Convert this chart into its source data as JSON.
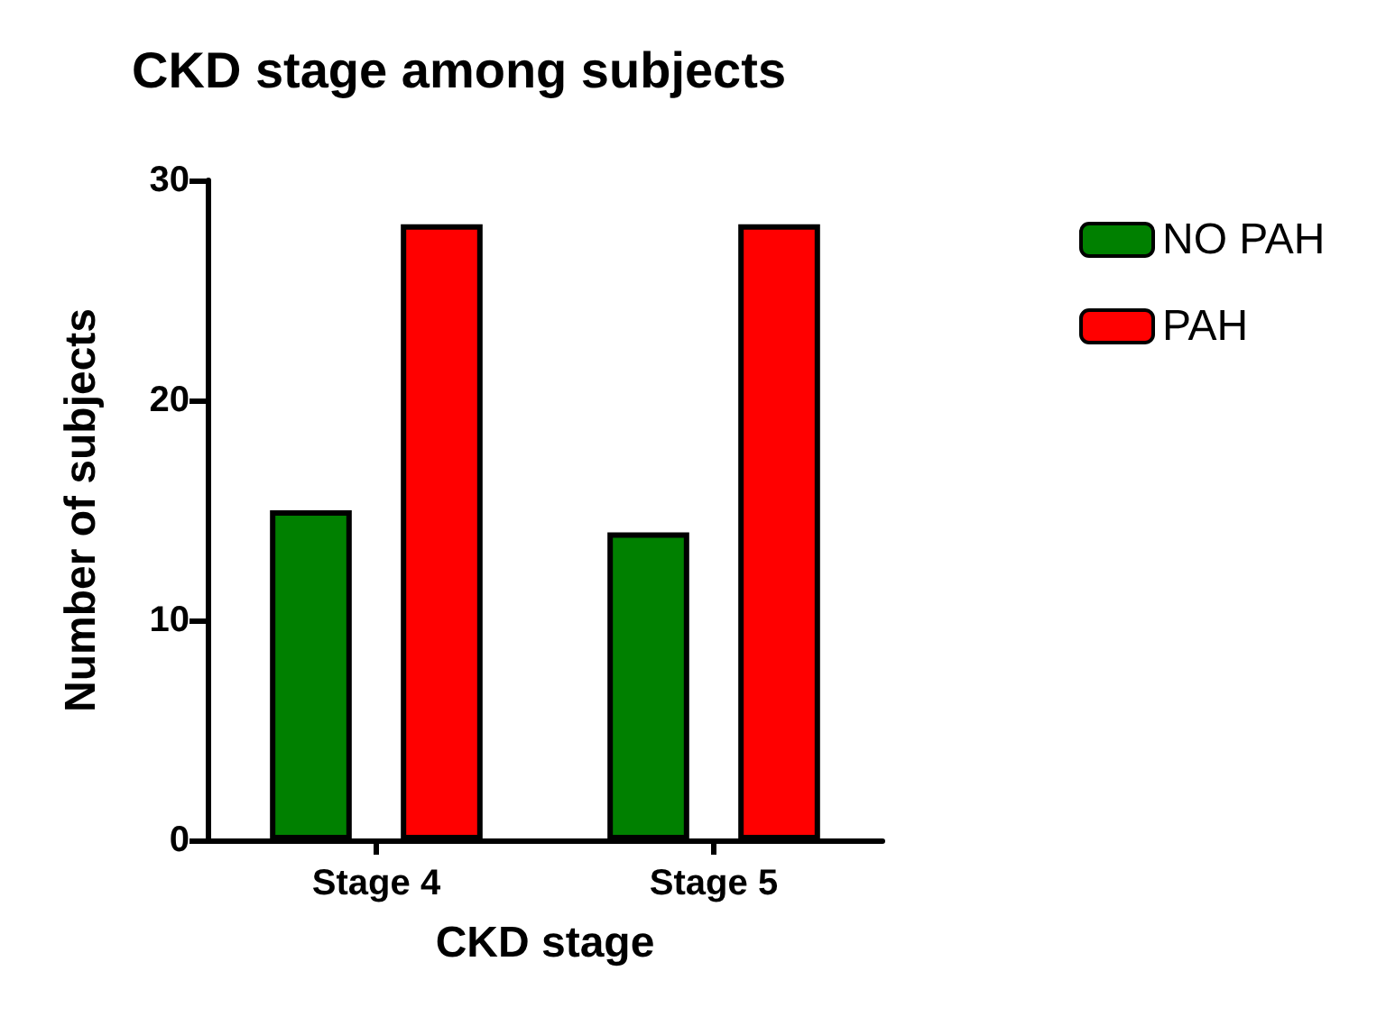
{
  "chart_data": {
    "type": "bar",
    "title": "CKD stage among subjects",
    "xlabel": "CKD stage",
    "ylabel": "Number of subjects",
    "categories": [
      "Stage 4",
      "Stage 5"
    ],
    "series": [
      {
        "name": "NO PAH",
        "color": "#008000",
        "values": [
          15,
          14
        ]
      },
      {
        "name": "PAH",
        "color": "#ff0000",
        "values": [
          28,
          28
        ]
      }
    ],
    "ylim": [
      0,
      30
    ],
    "yticks": [
      0,
      10,
      20,
      30
    ],
    "grid": false,
    "legend": "top right"
  }
}
